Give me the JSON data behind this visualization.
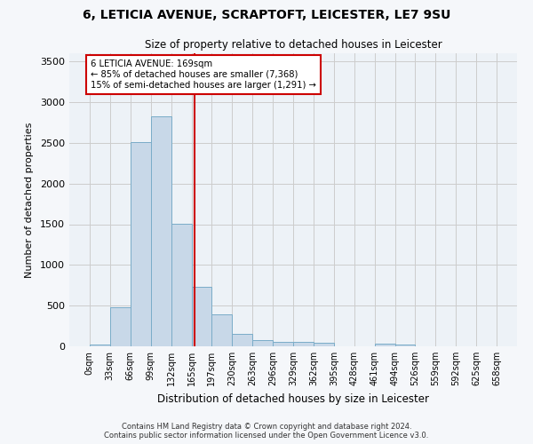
{
  "title_line1": "6, LETICIA AVENUE, SCRAPTOFT, LEICESTER, LE7 9SU",
  "title_line2": "Size of property relative to detached houses in Leicester",
  "xlabel": "Distribution of detached houses by size in Leicester",
  "ylabel": "Number of detached properties",
  "annotation_line1": "6 LETICIA AVENUE: 169sqm",
  "annotation_line2": "← 85% of detached houses are smaller (7,368)",
  "annotation_line3": "15% of semi-detached houses are larger (1,291) →",
  "footer_line1": "Contains HM Land Registry data © Crown copyright and database right 2024.",
  "footer_line2": "Contains public sector information licensed under the Open Government Licence v3.0.",
  "bar_edges": [
    0,
    33,
    66,
    99,
    132,
    165,
    197,
    230,
    263,
    296,
    329,
    362,
    395,
    428,
    461,
    494,
    526,
    559,
    592,
    625,
    658
  ],
  "bar_values": [
    20,
    480,
    2510,
    2830,
    1510,
    730,
    390,
    155,
    80,
    60,
    55,
    40,
    0,
    0,
    30,
    20,
    0,
    0,
    0,
    0
  ],
  "bar_color": "#c8d8e8",
  "bar_edgecolor": "#7aacc8",
  "vline_color": "#cc0000",
  "vline_x": 169,
  "annotation_box_color": "#cc0000",
  "annotation_bg": "#ffffff",
  "ylim_max": 3600,
  "yticks": [
    0,
    500,
    1000,
    1500,
    2000,
    2500,
    3000,
    3500
  ],
  "grid_color": "#cccccc",
  "bg_color": "#edf2f7",
  "fig_bg_color": "#f5f7fa"
}
